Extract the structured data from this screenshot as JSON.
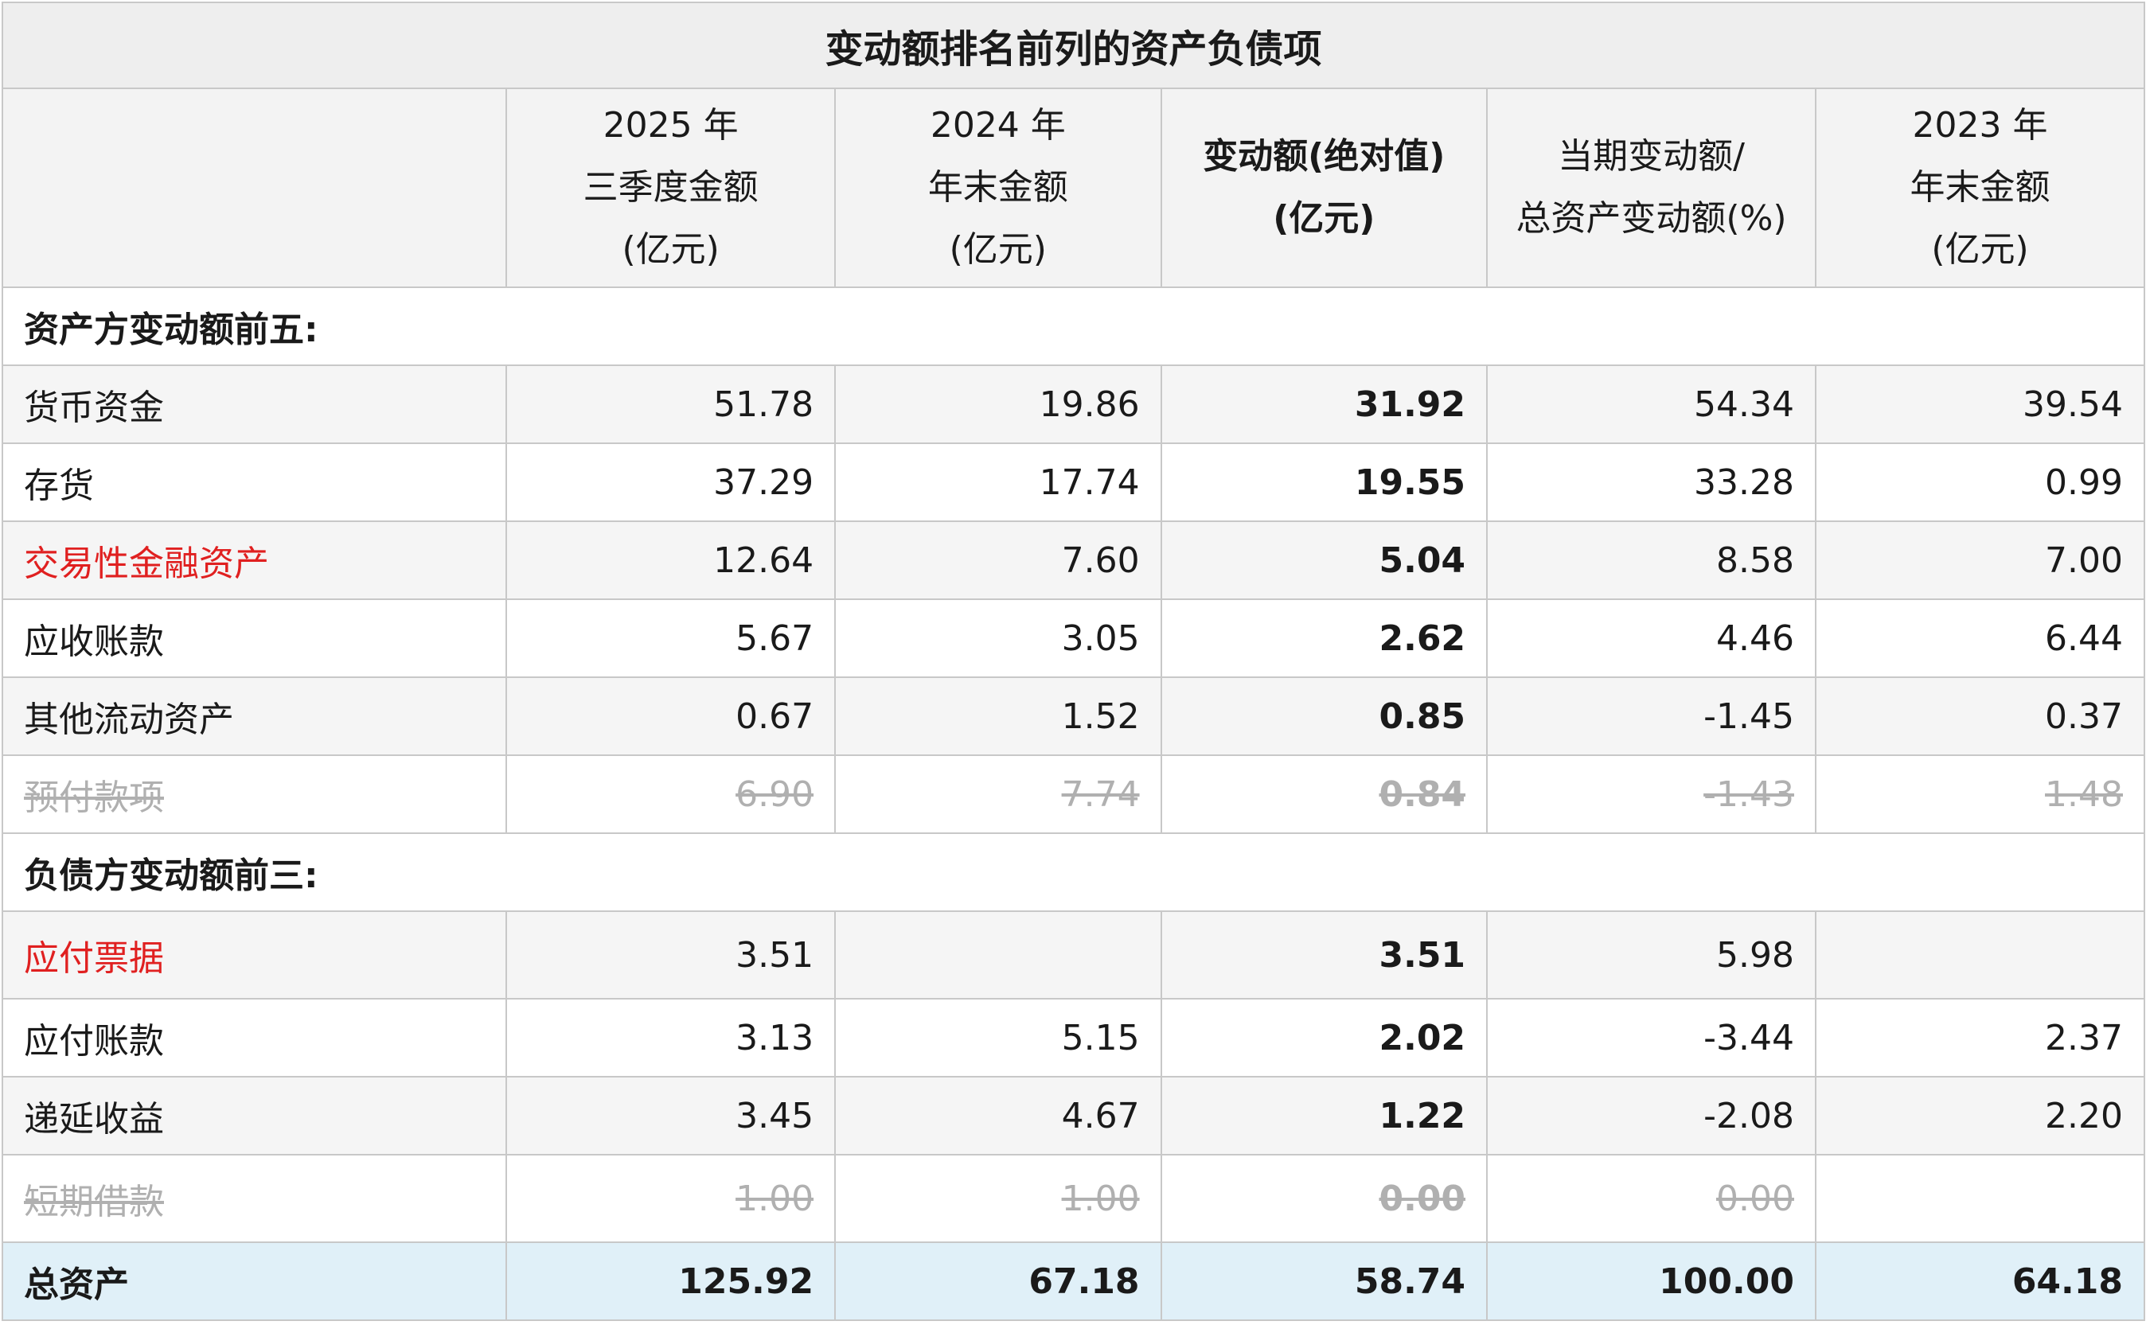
{
  "title": "变动额排名前列的资产负债项",
  "headers": [
    [
      ""
    ],
    [
      "2025 年",
      "三季度金额",
      "(亿元)"
    ],
    [
      "2024 年",
      "年末金额",
      "(亿元)"
    ],
    [
      "变动额(绝对值)",
      "(亿元)"
    ],
    [
      "当期变动额/",
      "总资产变动额(%)"
    ],
    [
      "2023 年",
      "年末金额",
      "(亿元)"
    ]
  ],
  "sections": [
    {
      "title": "资产方变动额前五:",
      "rows": [
        {
          "name": "货币资金",
          "values": [
            "51.78",
            "19.86",
            "31.92",
            "54.34",
            "39.54"
          ],
          "highlight": false,
          "struck": false
        },
        {
          "name": "存货",
          "values": [
            "37.29",
            "17.74",
            "19.55",
            "33.28",
            "0.99"
          ],
          "highlight": false,
          "struck": false
        },
        {
          "name": "交易性金融资产",
          "values": [
            "12.64",
            "7.60",
            "5.04",
            "8.58",
            "7.00"
          ],
          "highlight": true,
          "struck": false
        },
        {
          "name": "应收账款",
          "values": [
            "5.67",
            "3.05",
            "2.62",
            "4.46",
            "6.44"
          ],
          "highlight": false,
          "struck": false
        },
        {
          "name": "其他流动资产",
          "values": [
            "0.67",
            "1.52",
            "0.85",
            "-1.45",
            "0.37"
          ],
          "highlight": false,
          "struck": false
        },
        {
          "name": "预付款项",
          "values": [
            "6.90",
            "7.74",
            "0.84",
            "-1.43",
            "1.48"
          ],
          "highlight": false,
          "struck": true
        }
      ]
    },
    {
      "title": "负债方变动额前三:",
      "rows": [
        {
          "name": "应付票据",
          "values": [
            "3.51",
            "",
            "3.51",
            "5.98",
            ""
          ],
          "highlight": true,
          "struck": false
        },
        {
          "name": "应付账款",
          "values": [
            "3.13",
            "5.15",
            "2.02",
            "-3.44",
            "2.37"
          ],
          "highlight": false,
          "struck": false
        },
        {
          "name": "递延收益",
          "values": [
            "3.45",
            "4.67",
            "1.22",
            "-2.08",
            "2.20"
          ],
          "highlight": false,
          "struck": false
        },
        {
          "name": "短期借款",
          "values": [
            "1.00",
            "1.00",
            "0.00",
            "0.00",
            ""
          ],
          "highlight": false,
          "struck": true
        }
      ]
    }
  ],
  "total": {
    "name": "总资产",
    "values": [
      "125.92",
      "67.18",
      "58.74",
      "100.00",
      "64.18"
    ]
  },
  "colors": {
    "highlight_text": "#e02020",
    "struck_text": "#b0b0b0",
    "total_bg": "#e0f0f8",
    "header_bg": "#f3f3f3"
  }
}
